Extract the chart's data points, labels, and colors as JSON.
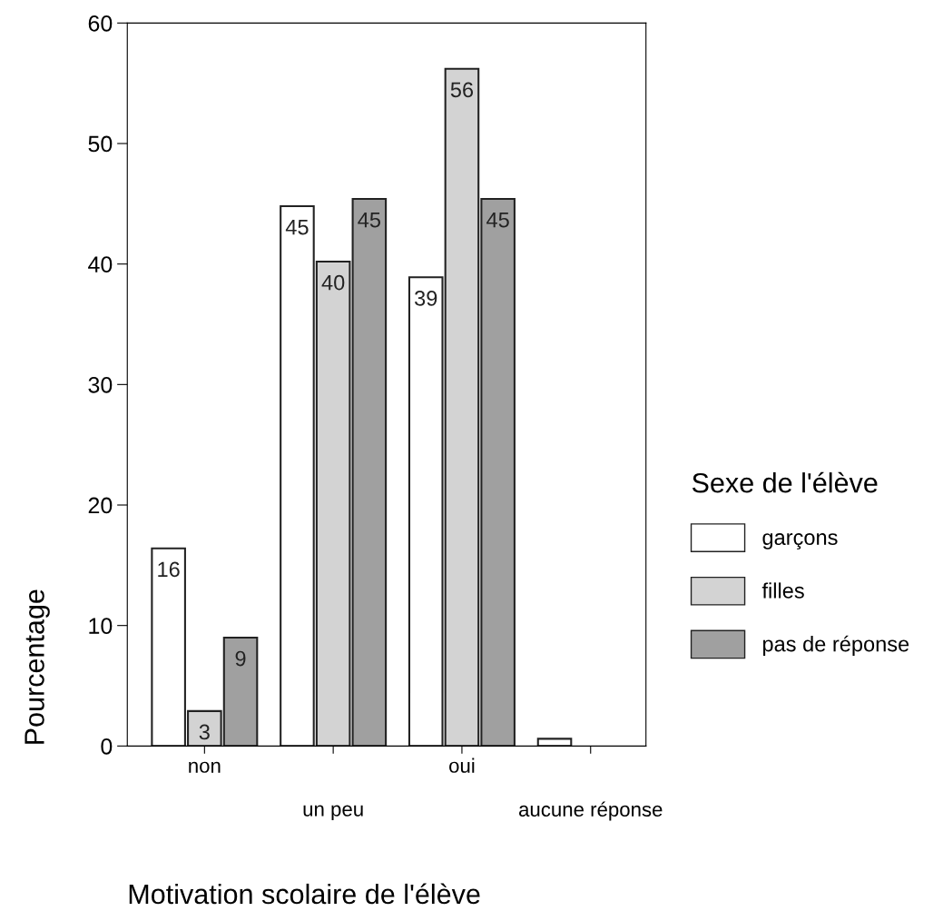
{
  "chart_data": {
    "type": "bar",
    "xlabel": "Motivation scolaire de l'élève",
    "ylabel": "Pourcentage",
    "legend_title": "Sexe de l'élève",
    "categories": [
      "non",
      "un peu",
      "oui",
      "aucune réponse"
    ],
    "series": [
      {
        "name": "garçons",
        "color": "#ffffff",
        "values": [
          16.4,
          44.8,
          38.9,
          0.6
        ],
        "value_labels": [
          "16",
          "45",
          "39",
          null
        ]
      },
      {
        "name": "filles",
        "color": "#d3d3d3",
        "values": [
          2.9,
          40.2,
          56.2,
          null
        ],
        "value_labels": [
          "3",
          "40",
          "56",
          null
        ]
      },
      {
        "name": "pas de réponse",
        "color": "#a0a0a0",
        "values": [
          9,
          45.4,
          45.4,
          null
        ],
        "value_labels": [
          "9",
          "45",
          "45",
          null
        ]
      }
    ],
    "ylim": [
      0,
      60
    ],
    "yticks": [
      0,
      10,
      20,
      30,
      40,
      50,
      60
    ],
    "grid": false,
    "legend": "right"
  }
}
